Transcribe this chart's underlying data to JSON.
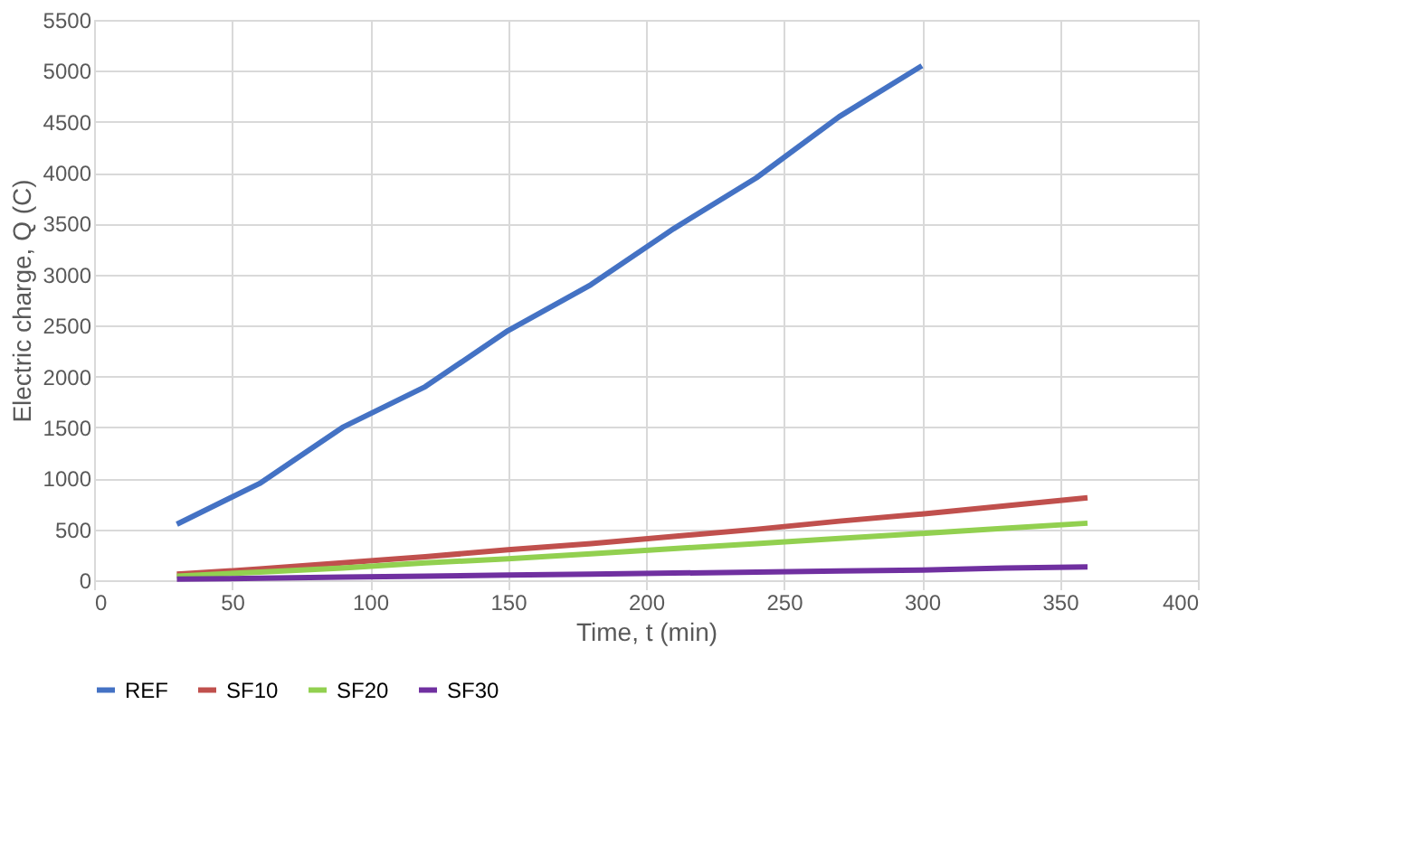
{
  "chart_data": {
    "type": "line",
    "xlabel": "Time, t (min)",
    "ylabel": "Electric charge, Q (C)",
    "xlim": [
      0,
      400
    ],
    "xticks": [
      0,
      50,
      100,
      150,
      200,
      250,
      300,
      350,
      400
    ],
    "ylim": [
      0,
      5500
    ],
    "yticks": [
      0,
      500,
      1000,
      1500,
      2000,
      2500,
      3000,
      3500,
      4000,
      4500,
      5000,
      5500
    ],
    "grid": true,
    "legend": "bottom",
    "line_style": "solid",
    "marker": "none",
    "series": [
      {
        "name": "REF",
        "color": "#4472c4",
        "x": [
          30,
          60,
          90,
          120,
          150,
          180,
          210,
          240,
          270,
          300
        ],
        "values": [
          550,
          950,
          1500,
          1900,
          2450,
          2900,
          3450,
          3950,
          4550,
          5050
        ]
      },
      {
        "name": "SF10",
        "color": "#c0504d",
        "x": [
          30,
          60,
          90,
          120,
          150,
          180,
          210,
          240,
          270,
          300,
          330,
          360
        ],
        "values": [
          60,
          110,
          170,
          230,
          300,
          360,
          430,
          500,
          580,
          650,
          730,
          810
        ]
      },
      {
        "name": "SF20",
        "color": "#92d050",
        "x": [
          30,
          60,
          90,
          120,
          150,
          180,
          210,
          240,
          270,
          300,
          330,
          360
        ],
        "values": [
          40,
          80,
          120,
          170,
          210,
          260,
          310,
          360,
          410,
          460,
          510,
          560
        ]
      },
      {
        "name": "SF30",
        "color": "#7030a0",
        "x": [
          30,
          60,
          90,
          120,
          150,
          180,
          210,
          240,
          270,
          300,
          330,
          360
        ],
        "values": [
          10,
          20,
          30,
          40,
          50,
          60,
          70,
          80,
          90,
          100,
          120,
          130
        ]
      }
    ]
  }
}
